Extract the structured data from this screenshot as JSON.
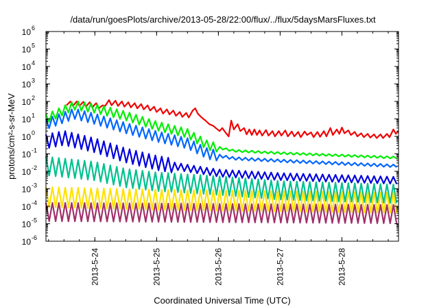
{
  "chart_data": {
    "type": "line",
    "title": "/data/run/goesPlots/archive/2013-05-28/22:00/flux/../flux/5daysMarsFluxes.txt",
    "xlabel": "Coordinated Universal Time (UTC)",
    "ylabel": "protons/cm²-s-sr-MeV",
    "y_scale": "log",
    "ylim": [
      1e-06,
      1000000.0
    ],
    "xlim": [
      "2013-05-23T05:00",
      "2013-05-28T22:00"
    ],
    "grid": false,
    "legend": "none",
    "y_ticks": [
      {
        "base": "10",
        "exp": "-6",
        "value": 1e-06
      },
      {
        "base": "10",
        "exp": "-5",
        "value": 1e-05
      },
      {
        "base": "10",
        "exp": "-4",
        "value": 0.0001
      },
      {
        "base": "10",
        "exp": "-3",
        "value": 0.001
      },
      {
        "base": "10",
        "exp": "-2",
        "value": 0.01
      },
      {
        "base": "10",
        "exp": "-1",
        "value": 0.1
      },
      {
        "base": "10",
        "exp": "0",
        "value": 1
      },
      {
        "base": "10",
        "exp": "1",
        "value": 10
      },
      {
        "base": "10",
        "exp": "2",
        "value": 100
      },
      {
        "base": "10",
        "exp": "3",
        "value": 1000
      },
      {
        "base": "10",
        "exp": "4",
        "value": 10000
      },
      {
        "base": "10",
        "exp": "5",
        "value": 100000
      },
      {
        "base": "10",
        "exp": "6",
        "value": 1000000
      }
    ],
    "x_ticks": [
      {
        "label": "2013-5-24",
        "time": "2013-05-24T00:00"
      },
      {
        "label": "2013-5-25",
        "time": "2013-05-25T00:00"
      },
      {
        "label": "2013-5-26",
        "time": "2013-05-26T00:00"
      },
      {
        "label": "2013-5-27",
        "time": "2013-05-27T00:00"
      },
      {
        "label": "2013-5-28",
        "time": "2013-05-28T00:00"
      }
    ],
    "series": [
      {
        "color": "#ee0000",
        "points": [
          [
            "2013-05-23T13:00",
            60
          ],
          [
            "2013-05-23T14:30",
            100
          ],
          [
            "2013-05-23T15:30",
            55
          ],
          [
            "2013-05-23T17:00",
            100
          ],
          [
            "2013-05-23T18:00",
            55
          ],
          [
            "2013-05-23T19:30",
            95
          ],
          [
            "2013-05-23T20:30",
            50
          ],
          [
            "2013-05-23T22:00",
            90
          ],
          [
            "2013-05-23T23:00",
            45
          ],
          [
            "2013-05-24T00:30",
            80
          ],
          [
            "2013-05-24T01:30",
            40
          ],
          [
            "2013-05-24T03:00",
            60
          ],
          [
            "2013-05-24T04:00",
            55
          ],
          [
            "2013-05-24T05:30",
            120
          ],
          [
            "2013-05-24T06:30",
            60
          ],
          [
            "2013-05-24T08:00",
            110
          ],
          [
            "2013-05-24T09:00",
            55
          ],
          [
            "2013-05-24T10:30",
            100
          ],
          [
            "2013-05-24T11:30",
            50
          ],
          [
            "2013-05-24T13:00",
            90
          ],
          [
            "2013-05-24T14:00",
            45
          ],
          [
            "2013-05-24T15:30",
            80
          ],
          [
            "2013-05-24T16:30",
            40
          ],
          [
            "2013-05-24T18:00",
            70
          ],
          [
            "2013-05-24T19:00",
            35
          ],
          [
            "2013-05-24T20:30",
            60
          ],
          [
            "2013-05-24T21:30",
            30
          ],
          [
            "2013-05-24T23:00",
            50
          ],
          [
            "2013-05-25T00:00",
            25
          ],
          [
            "2013-05-25T01:30",
            40
          ],
          [
            "2013-05-25T02:30",
            20
          ],
          [
            "2013-05-25T04:00",
            35
          ],
          [
            "2013-05-25T05:00",
            18
          ],
          [
            "2013-05-25T06:30",
            30
          ],
          [
            "2013-05-25T07:30",
            15
          ],
          [
            "2013-05-25T09:00",
            25
          ],
          [
            "2013-05-25T10:00",
            13
          ],
          [
            "2013-05-25T11:30",
            22
          ],
          [
            "2013-05-25T12:30",
            12
          ],
          [
            "2013-05-25T14:00",
            30
          ],
          [
            "2013-05-25T15:00",
            40
          ],
          [
            "2013-05-25T16:00",
            20
          ],
          [
            "2013-05-25T17:30",
            12
          ],
          [
            "2013-05-25T19:00",
            8
          ],
          [
            "2013-05-25T20:30",
            5
          ],
          [
            "2013-05-25T22:00",
            4
          ],
          [
            "2013-05-25T23:00",
            3
          ],
          [
            "2013-05-26T00:30",
            2
          ],
          [
            "2013-05-26T01:30",
            3
          ],
          [
            "2013-05-26T03:00",
            1.5
          ],
          [
            "2013-05-26T04:00",
            1.0
          ],
          [
            "2013-05-26T05:00",
            8
          ],
          [
            "2013-05-26T06:00",
            2.5
          ],
          [
            "2013-05-26T07:30",
            5
          ],
          [
            "2013-05-26T08:30",
            2
          ],
          [
            "2013-05-26T10:00",
            3
          ],
          [
            "2013-05-26T11:00",
            1.3
          ],
          [
            "2013-05-26T12:00",
            2.5
          ],
          [
            "2013-05-26T13:00",
            1.2
          ],
          [
            "2013-05-26T14:00",
            2.5
          ],
          [
            "2013-05-26T15:00",
            1.2
          ],
          [
            "2013-05-26T16:00",
            2.2
          ],
          [
            "2013-05-26T17:00",
            1.1
          ],
          [
            "2013-05-26T18:30",
            2.3
          ],
          [
            "2013-05-26T19:30",
            1.1
          ],
          [
            "2013-05-26T21:00",
            2.0
          ],
          [
            "2013-05-26T22:00",
            1.0
          ],
          [
            "2013-05-26T23:30",
            2.0
          ],
          [
            "2013-05-27T00:30",
            1.1
          ],
          [
            "2013-05-27T02:00",
            2.2
          ],
          [
            "2013-05-27T03:00",
            1.0
          ],
          [
            "2013-05-27T04:30",
            1.9
          ],
          [
            "2013-05-27T05:30",
            1.0
          ],
          [
            "2013-05-27T07:00",
            1.8
          ],
          [
            "2013-05-27T08:00",
            0.9
          ],
          [
            "2013-05-27T09:30",
            1.9
          ],
          [
            "2013-05-27T10:30",
            1.2
          ],
          [
            "2013-05-27T12:00",
            1.7
          ],
          [
            "2013-05-27T13:00",
            0.9
          ],
          [
            "2013-05-27T14:30",
            1.8
          ],
          [
            "2013-05-27T15:30",
            0.95
          ],
          [
            "2013-05-27T17:00",
            2.0
          ],
          [
            "2013-05-27T18:00",
            1.0
          ],
          [
            "2013-05-27T19:30",
            3.0
          ],
          [
            "2013-05-27T20:30",
            1.2
          ],
          [
            "2013-05-27T22:00",
            2.5
          ],
          [
            "2013-05-27T23:00",
            1.4
          ],
          [
            "2013-05-28T00:00",
            3.2
          ],
          [
            "2013-05-28T01:00",
            1.5
          ],
          [
            "2013-05-28T02:30",
            2.2
          ],
          [
            "2013-05-28T03:30",
            1.2
          ],
          [
            "2013-05-28T05:00",
            1.8
          ],
          [
            "2013-05-28T06:00",
            1.0
          ],
          [
            "2013-05-28T07:30",
            1.5
          ],
          [
            "2013-05-28T08:30",
            0.9
          ],
          [
            "2013-05-28T10:00",
            1.4
          ],
          [
            "2013-05-28T11:00",
            0.85
          ],
          [
            "2013-05-28T12:30",
            1.3
          ],
          [
            "2013-05-28T13:30",
            0.8
          ],
          [
            "2013-05-28T15:00",
            1.3
          ],
          [
            "2013-05-28T16:00",
            0.8
          ],
          [
            "2013-05-28T17:30",
            1.4
          ],
          [
            "2013-05-28T18:30",
            0.9
          ],
          [
            "2013-05-28T20:00",
            2.5
          ],
          [
            "2013-05-28T21:00",
            1.4
          ],
          [
            "2013-05-28T22:00",
            2.0
          ]
        ]
      },
      {
        "color": "#00ee00",
        "sawtooth": {
          "start": "2013-05-23T05:00",
          "end": "2013-05-28T22:00",
          "period_hours": 2.5,
          "trend": [
            [
              "2013-05-23T05:00",
              10
            ],
            [
              "2013-05-23T16:00",
              60
            ],
            [
              "2013-05-24T00:00",
              40
            ],
            [
              "2013-05-24T12:00",
              15
            ],
            [
              "2013-05-25T00:00",
              4
            ],
            [
              "2013-05-25T12:00",
              1.5
            ],
            [
              "2013-05-25T20:00",
              0.3
            ],
            [
              "2013-05-26T06:00",
              0.15
            ],
            [
              "2013-05-27T00:00",
              0.11
            ],
            [
              "2013-05-28T22:00",
              0.06
            ]
          ],
          "amp_high": 1.8,
          "amp_low": 0.55,
          "amp_fade": "2013-05-26T00:00",
          "amp_late": 1.15
        }
      },
      {
        "color": "#0066ff",
        "sawtooth": {
          "start": "2013-05-23T05:00",
          "end": "2013-05-28T22:00",
          "period_hours": 2.5,
          "trend": [
            [
              "2013-05-23T05:00",
              5
            ],
            [
              "2013-05-23T16:00",
              20
            ],
            [
              "2013-05-24T00:00",
              10
            ],
            [
              "2013-05-24T12:00",
              3
            ],
            [
              "2013-05-25T00:00",
              1.0
            ],
            [
              "2013-05-25T12:00",
              0.4
            ],
            [
              "2013-05-25T20:00",
              0.1
            ],
            [
              "2013-05-26T06:00",
              0.055
            ],
            [
              "2013-05-27T00:00",
              0.04
            ],
            [
              "2013-05-28T22:00",
              0.02
            ]
          ],
          "amp_high": 2.0,
          "amp_low": 0.5,
          "amp_fade": "2013-05-26T00:00",
          "amp_late": 1.2
        }
      },
      {
        "color": "#0000dd",
        "sawtooth": {
          "start": "2013-05-23T05:00",
          "end": "2013-05-28T22:00",
          "period_hours": 2.5,
          "trend": [
            [
              "2013-05-23T05:00",
              0.5
            ],
            [
              "2013-05-23T12:00",
              0.8
            ],
            [
              "2013-05-24T00:00",
              0.3
            ],
            [
              "2013-05-24T12:00",
              0.08
            ],
            [
              "2013-05-25T00:00",
              0.03
            ],
            [
              "2013-05-25T12:00",
              0.015
            ],
            [
              "2013-05-26T00:00",
              0.008
            ],
            [
              "2013-05-27T00:00",
              0.005
            ],
            [
              "2013-05-28T22:00",
              0.003
            ]
          ],
          "amp_high": 2.6,
          "amp_low": 0.4,
          "amp_fade": "2013-05-25T06:00",
          "amp_late": 1.6
        }
      },
      {
        "color": "#00c090",
        "sawtooth": {
          "start": "2013-05-23T05:00",
          "end": "2013-05-28T22:00",
          "period_hours": 2.5,
          "trend": [
            [
              "2013-05-23T05:00",
              0.02
            ],
            [
              "2013-05-24T00:00",
              0.01
            ],
            [
              "2013-05-24T12:00",
              0.004
            ],
            [
              "2013-05-25T00:00",
              0.0025
            ],
            [
              "2013-05-26T00:00",
              0.0015
            ],
            [
              "2013-05-27T00:00",
              0.0008
            ],
            [
              "2013-05-28T22:00",
              0.0005
            ]
          ],
          "amp_high": 3.5,
          "amp_low": 0.3,
          "amp_fade": "2013-05-28T22:00",
          "amp_late": 3.0
        }
      },
      {
        "color": "#ffe100",
        "sawtooth": {
          "start": "2013-05-23T05:00",
          "end": "2013-05-28T22:00",
          "period_hours": 2.5,
          "trend": [
            [
              "2013-05-23T05:00",
              0.00025
            ],
            [
              "2013-05-25T00:00",
              0.00018
            ],
            [
              "2013-05-28T22:00",
              0.00012
            ]
          ],
          "amp_high": 5.0,
          "amp_low": 0.35,
          "amp_fade": "2013-05-28T22:00",
          "amp_late": 4.5
        }
      },
      {
        "color": "#a0306a",
        "sawtooth": {
          "start": "2013-05-23T05:00",
          "end": "2013-05-28T22:00",
          "period_hours": 2.5,
          "trend": [
            [
              "2013-05-23T05:00",
              4e-05
            ],
            [
              "2013-05-28T22:00",
              3e-05
            ]
          ],
          "amp_high": 4.0,
          "amp_low": 0.35,
          "amp_fade": "2013-05-28T22:00",
          "amp_late": 4.0
        }
      }
    ]
  }
}
